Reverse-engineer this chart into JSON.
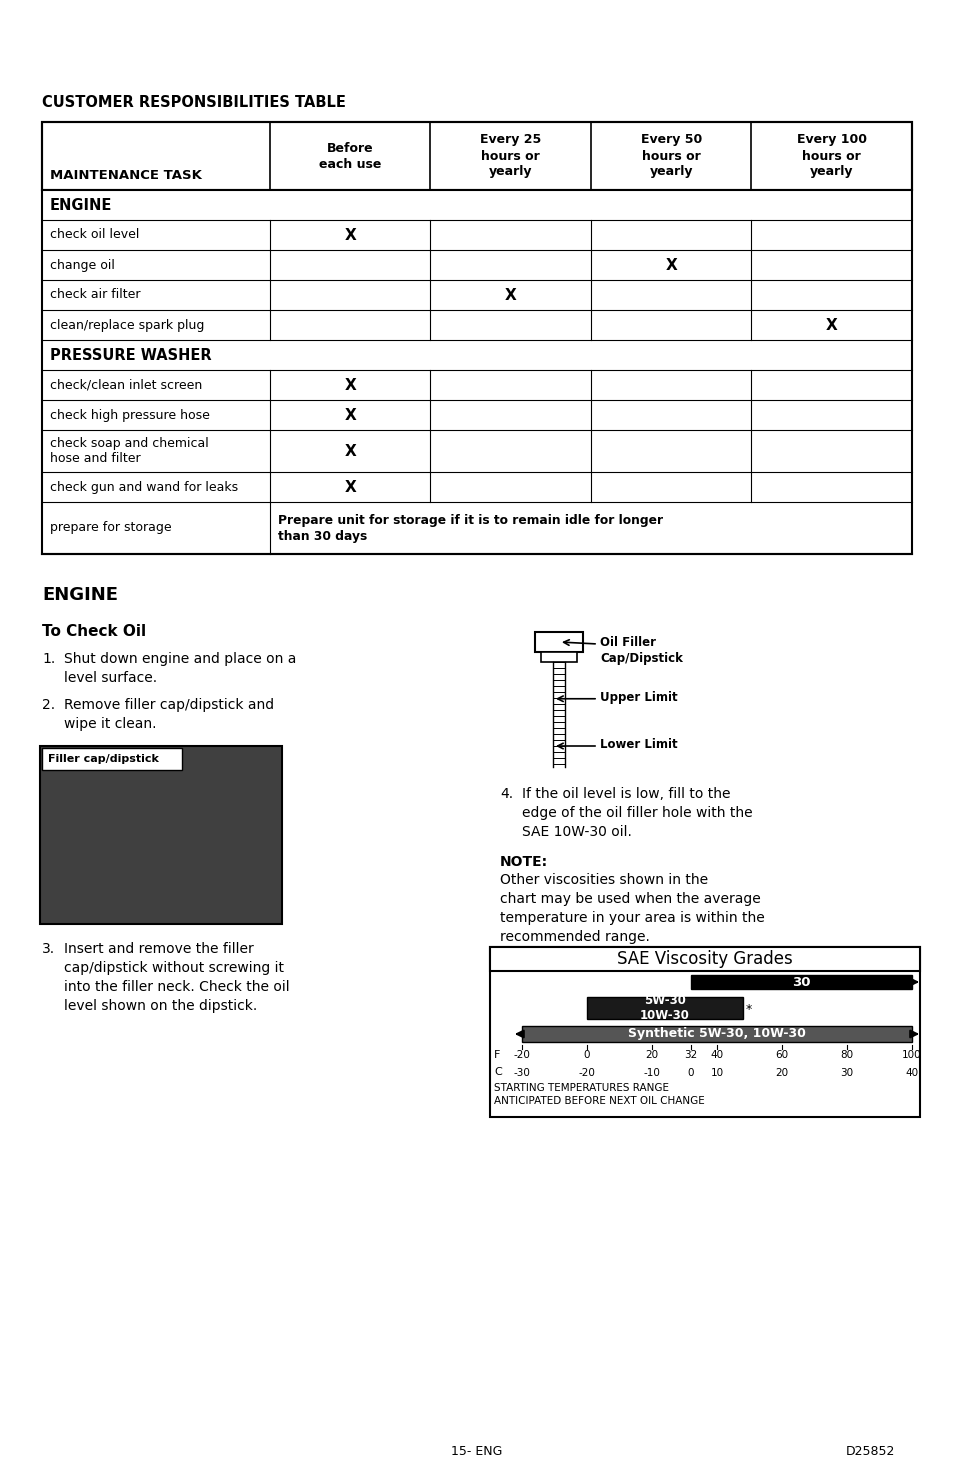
{
  "page_bg": "#ffffff",
  "title_table": "CUSTOMER RESPONSIBILITIES TABLE",
  "col_headers": [
    "MAINTENANCE TASK",
    "Before\neach use",
    "Every 25\nhours or\nyearly",
    "Every 50\nhours or\nyearly",
    "Every 100\nhours or\nyearly"
  ],
  "section_engine": "ENGINE",
  "section_pw": "PRESSURE WASHER",
  "storage_text_line1": "Prepare unit for storage if it is to remain idle for longer",
  "storage_text_line2": "than 30 days",
  "engine_heading": "ENGINE",
  "check_oil_heading": "To Check Oil",
  "step1": "Shut down engine and place on a\nlevel surface.",
  "step2": "Remove filler cap/dipstick and\nwipe it clean.",
  "step3": "Insert and remove the filler\ncap/dipstick without screwing it\ninto the filler neck. Check the oil\nlevel shown on the dipstick.",
  "step4": "If the oil level is low, fill to the\nedge of the oil filler hole with the\nSAE 10W-30 oil.",
  "note_text": "Other viscosities shown in the\nchart may be used when the average\ntemperature in your area is within the\nrecommended range.",
  "oil_filler_label": "Oil Filler\nCap/Dipstick",
  "upper_limit": "Upper Limit",
  "lower_limit": "Lower Limit",
  "filler_label": "Filler cap/dipstick",
  "sae_title": "SAE Viscosity Grades",
  "sae_footer1": "STARTING TEMPERATURES RANGE",
  "sae_footer2": "ANTICIPATED BEFORE NEXT OIL CHANGE",
  "page_num": "15- ENG",
  "page_code": "D25852"
}
